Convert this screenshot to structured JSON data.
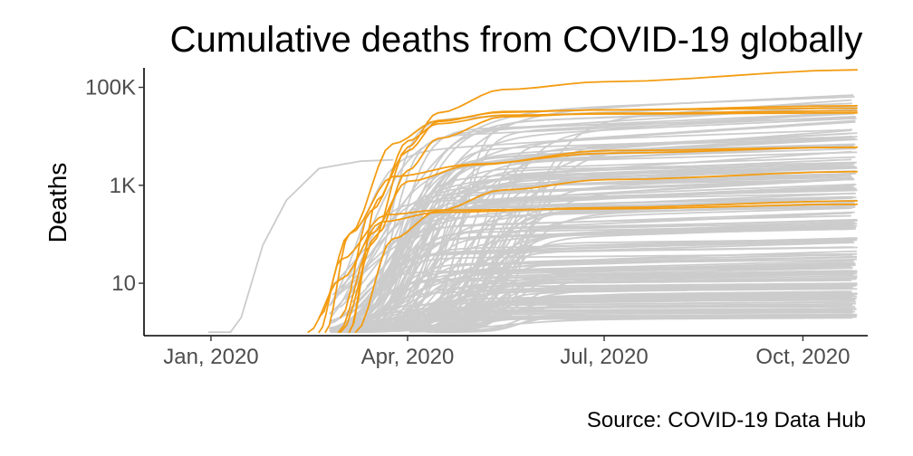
{
  "chart_data": {
    "type": "line",
    "title": "Cumulative deaths from COVID-19 globally",
    "xlabel": "",
    "ylabel": "Deaths",
    "caption": "Source: COVID-19 Data Hub",
    "y_scale": "log10",
    "xlim": [
      "2019-12-01",
      "2020-10-31"
    ],
    "ylim": [
      0.85,
      250000
    ],
    "x_ticks": [
      {
        "date": "2020-01-01",
        "label": "Jan, 2020"
      },
      {
        "date": "2020-04-01",
        "label": "Apr, 2020"
      },
      {
        "date": "2020-07-01",
        "label": "Jul, 2020"
      },
      {
        "date": "2020-10-01",
        "label": "Oct, 2020"
      }
    ],
    "y_ticks": [
      {
        "value": 10,
        "label": "10"
      },
      {
        "value": 1000,
        "label": "1K"
      },
      {
        "value": 100000,
        "label": "100K"
      }
    ],
    "grid": false,
    "legend": "none",
    "colors": {
      "highlight": "#f39c12",
      "other": "#cccccc",
      "axis": "#000000",
      "tick_label": "#4d4d4d"
    },
    "background_series_count": 180,
    "highlight_series": [
      {
        "values": [
          [
            "2020-02-29",
            1
          ],
          [
            "2020-03-15",
            60
          ],
          [
            "2020-04-01",
            6000
          ],
          [
            "2020-04-15",
            30000
          ],
          [
            "2020-05-15",
            90000
          ],
          [
            "2020-07-01",
            130000
          ],
          [
            "2020-10-26",
            228000
          ]
        ]
      },
      {
        "values": [
          [
            "2020-03-01",
            2
          ],
          [
            "2020-03-15",
            300
          ],
          [
            "2020-04-01",
            5000
          ],
          [
            "2020-04-15",
            20000
          ],
          [
            "2020-05-15",
            32000
          ],
          [
            "2020-07-01",
            34500
          ],
          [
            "2020-10-26",
            42000
          ]
        ]
      },
      {
        "values": [
          [
            "2020-03-05",
            1
          ],
          [
            "2020-03-18",
            500
          ],
          [
            "2020-04-01",
            8000
          ],
          [
            "2020-04-15",
            18000
          ],
          [
            "2020-05-15",
            27000
          ],
          [
            "2020-07-01",
            28500
          ],
          [
            "2020-10-26",
            30000
          ]
        ]
      },
      {
        "values": [
          [
            "2020-02-23",
            1
          ],
          [
            "2020-03-05",
            100
          ],
          [
            "2020-03-25",
            7000
          ],
          [
            "2020-04-15",
            21000
          ],
          [
            "2020-05-15",
            31000
          ],
          [
            "2020-07-01",
            34800
          ],
          [
            "2020-10-26",
            37500
          ]
        ]
      },
      {
        "values": [
          [
            "2020-03-01",
            1
          ],
          [
            "2020-03-18",
            100
          ],
          [
            "2020-04-01",
            2000
          ],
          [
            "2020-04-15",
            9000
          ],
          [
            "2020-05-15",
            25000
          ],
          [
            "2020-07-01",
            29500
          ],
          [
            "2020-10-26",
            33000
          ]
        ]
      },
      {
        "values": [
          [
            "2020-02-20",
            2
          ],
          [
            "2020-03-05",
            100
          ],
          [
            "2020-03-25",
            1500
          ],
          [
            "2020-05-01",
            2700
          ],
          [
            "2020-07-01",
            4500
          ],
          [
            "2020-10-26",
            6000
          ]
        ]
      },
      {
        "values": [
          [
            "2020-03-05",
            1
          ],
          [
            "2020-03-15",
            100
          ],
          [
            "2020-04-01",
            1200
          ],
          [
            "2020-05-01",
            2600
          ],
          [
            "2020-07-01",
            5100
          ],
          [
            "2020-10-26",
            5950
          ]
        ]
      },
      {
        "values": [
          [
            "2020-03-08",
            1
          ],
          [
            "2020-03-25",
            80
          ],
          [
            "2020-04-15",
            300
          ],
          [
            "2020-05-15",
            800
          ],
          [
            "2020-07-01",
            1300
          ],
          [
            "2020-10-26",
            1900
          ]
        ]
      },
      {
        "values": [
          [
            "2020-02-15",
            1
          ],
          [
            "2020-03-01",
            12
          ],
          [
            "2020-03-20",
            180
          ],
          [
            "2020-04-15",
            280
          ],
          [
            "2020-07-01",
            350
          ],
          [
            "2020-10-26",
            480
          ]
        ]
      },
      {
        "values": [
          [
            "2020-02-20",
            1
          ],
          [
            "2020-03-01",
            30
          ],
          [
            "2020-03-22",
            250
          ],
          [
            "2020-04-15",
            310
          ],
          [
            "2020-07-01",
            330
          ],
          [
            "2020-10-26",
            410
          ]
        ]
      }
    ]
  }
}
